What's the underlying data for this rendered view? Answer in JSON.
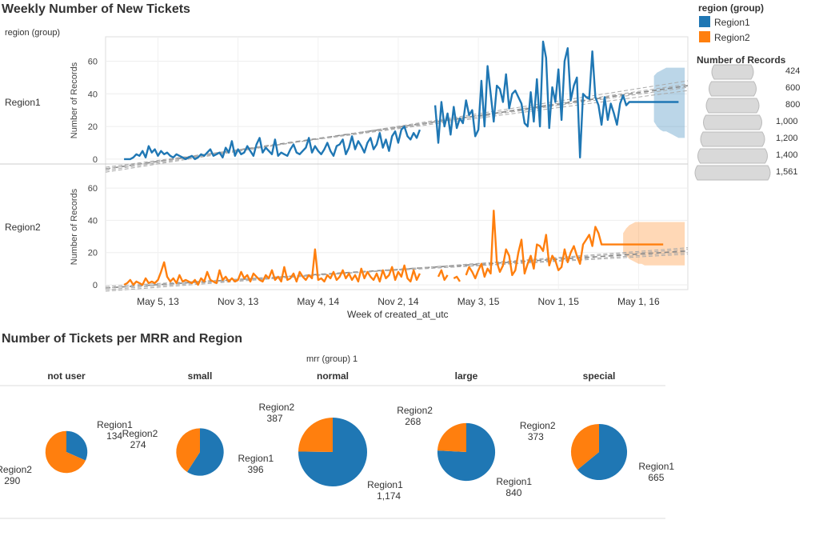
{
  "dashboard": {
    "title1": "Weekly Number of New Tickets",
    "title2": "Number of Tickets per MRR and Region",
    "region_header": "region (group)",
    "mrr_header": "mrr (group) 1"
  },
  "legend": {
    "color_title": "region (group)",
    "items": [
      {
        "name": "Region1",
        "color": "#1f77b4"
      },
      {
        "name": "Region2",
        "color": "#ff7f0e"
      }
    ],
    "size_title": "Number of Records",
    "size_values": [
      "424",
      "600",
      "800",
      "1,000",
      "1,200",
      "1,400",
      "1,561"
    ]
  },
  "colors": {
    "region1": "#1f77b4",
    "region2": "#ff7f0e",
    "trend": "#999999"
  },
  "chart_data": [
    {
      "type": "line",
      "title": "Weekly Number of New Tickets",
      "xlabel": "Week of created_at_utc",
      "ylabel": "Number of Records",
      "x_ticks": [
        "May 5, 13",
        "Nov 3, 13",
        "May 4, 14",
        "Nov 2, 14",
        "May 3, 15",
        "Nov 1, 15",
        "May 1, 16"
      ],
      "y_ticks": [
        0,
        20,
        40,
        60
      ],
      "ylim": [
        -3,
        72
      ],
      "grid": true,
      "series": [
        {
          "name": "Region1",
          "start_week": "Jan 6, 13",
          "values": [
            1,
            null,
            1,
            null,
            0,
            null,
            0,
            0,
            0,
            1,
            3,
            2,
            5,
            1,
            8,
            4,
            6,
            2,
            5,
            3,
            4,
            2,
            1,
            3,
            2,
            1,
            0,
            1,
            2,
            0,
            1,
            3,
            2,
            4,
            6,
            2,
            3,
            4,
            1,
            7,
            4,
            11,
            2,
            6,
            3,
            4,
            8,
            5,
            2,
            9,
            13,
            4,
            7,
            5,
            3,
            12,
            2,
            4,
            3,
            2,
            6,
            9,
            4,
            3,
            5,
            7,
            13,
            4,
            8,
            5,
            3,
            6,
            10,
            5,
            2,
            8,
            9,
            12,
            3,
            7,
            14,
            6,
            11,
            8,
            4,
            10,
            13,
            6,
            9,
            16,
            7,
            12,
            5,
            14,
            17,
            10,
            18,
            20,
            14,
            12,
            16,
            13,
            18,
            null,
            null,
            4,
            null,
            33,
            10,
            35,
            20,
            28,
            15,
            32,
            19,
            25,
            22,
            36,
            27,
            30,
            14,
            18,
            48,
            20,
            57,
            40,
            23,
            45,
            43,
            35,
            52,
            31,
            40,
            42,
            38,
            34,
            22,
            20,
            41,
            23,
            49,
            20,
            72,
            62,
            19,
            44,
            35,
            55,
            24,
            60,
            68,
            36,
            45,
            50,
            1,
            40,
            38,
            37,
            66,
            38,
            33,
            21,
            38,
            24,
            34,
            28,
            21,
            34,
            39,
            33,
            35,
            35,
            35,
            35,
            35,
            35,
            35,
            35,
            35,
            35,
            35,
            35,
            35,
            35,
            35,
            35,
            35
          ],
          "forecast_from": 178,
          "forecast_band": [
            [
              23,
              51
            ],
            [
              20,
              53
            ],
            [
              18,
              54
            ],
            [
              17,
              55
            ],
            [
              17,
              56
            ],
            [
              16,
              56
            ],
            [
              15,
              56
            ],
            [
              14,
              56
            ],
            [
              13,
              56
            ],
            [
              13,
              56
            ],
            [
              13,
              56
            ]
          ]
        },
        {
          "name": "Region2",
          "start_week": "Jan 6, 13",
          "values": [
            null,
            1,
            null,
            null,
            2,
            null,
            0,
            1,
            3,
            0,
            2,
            1,
            0,
            4,
            1,
            2,
            1,
            3,
            8,
            14,
            5,
            2,
            4,
            1,
            6,
            2,
            3,
            2,
            1,
            3,
            0,
            4,
            2,
            8,
            3,
            2,
            1,
            9,
            3,
            5,
            2,
            4,
            2,
            3,
            8,
            4,
            6,
            2,
            7,
            5,
            3,
            2,
            6,
            4,
            9,
            3,
            5,
            2,
            11,
            3,
            4,
            7,
            2,
            8,
            5,
            3,
            6,
            4,
            22,
            3,
            4,
            2,
            6,
            4,
            8,
            3,
            5,
            9,
            4,
            7,
            3,
            6,
            2,
            10,
            4,
            8,
            5,
            3,
            7,
            2,
            9,
            4,
            6,
            11,
            3,
            8,
            5,
            12,
            4,
            2,
            9,
            3,
            7,
            null,
            3,
            null,
            4,
            null,
            5,
            9,
            3,
            6,
            null,
            4,
            5,
            2,
            null,
            6,
            11,
            8,
            4,
            9,
            13,
            5,
            10,
            7,
            46,
            14,
            8,
            12,
            22,
            18,
            6,
            9,
            20,
            28,
            7,
            13,
            18,
            10,
            25,
            24,
            21,
            31,
            12,
            18,
            15,
            9,
            11,
            22,
            14,
            20,
            24,
            18,
            13,
            25,
            28,
            31,
            24,
            36,
            32,
            25,
            25,
            25,
            25,
            25,
            25,
            25,
            25,
            25,
            25,
            25,
            25,
            25,
            25,
            25,
            25,
            25,
            25,
            25,
            25,
            25
          ],
          "forecast_from": 168,
          "forecast_band": [
            [
              20,
              32
            ],
            [
              18,
              35
            ],
            [
              16,
              37
            ],
            [
              15,
              38
            ],
            [
              14,
              39
            ],
            [
              13,
              39
            ],
            [
              13,
              39
            ],
            [
              12,
              39
            ],
            [
              12,
              39
            ],
            [
              12,
              39
            ],
            [
              12,
              39
            ],
            [
              12,
              39
            ],
            [
              12,
              39
            ],
            [
              12,
              39
            ],
            [
              12,
              39
            ],
            [
              12,
              39
            ],
            [
              12,
              39
            ],
            [
              12,
              39
            ],
            [
              12,
              39
            ],
            [
              12,
              39
            ],
            [
              12,
              39
            ]
          ]
        }
      ],
      "trend_lines": {
        "Region1": {
          "center": [
            -6,
            45
          ],
          "lines": [
            [
              -6,
              44
            ],
            [
              -7,
              46
            ],
            [
              -5,
              42
            ],
            [
              -8,
              48
            ]
          ]
        },
        "Region2": {
          "center": [
            -2,
            21
          ],
          "lines": [
            [
              -2,
              20
            ],
            [
              -3,
              22
            ],
            [
              -1,
              19
            ],
            [
              -4,
              23
            ]
          ]
        }
      }
    },
    {
      "type": "pie",
      "title": "Number of Tickets per MRR and Region",
      "groups": [
        {
          "name": "not user",
          "Region1": 134,
          "Region2": 290,
          "Region1_label": "134",
          "Region2_label": "290"
        },
        {
          "name": "small",
          "Region1": 396,
          "Region2": 274,
          "Region1_label": "396",
          "Region2_label": "274"
        },
        {
          "name": "normal",
          "Region1": 1174,
          "Region2": 387,
          "Region1_label": "1,174",
          "Region2_label": "387"
        },
        {
          "name": "large",
          "Region1": 840,
          "Region2": 268,
          "Region1_label": "840",
          "Region2_label": "268"
        },
        {
          "name": "special",
          "Region1": 665,
          "Region2": 373,
          "Region1_label": "665",
          "Region2_label": "373"
        }
      ]
    }
  ]
}
